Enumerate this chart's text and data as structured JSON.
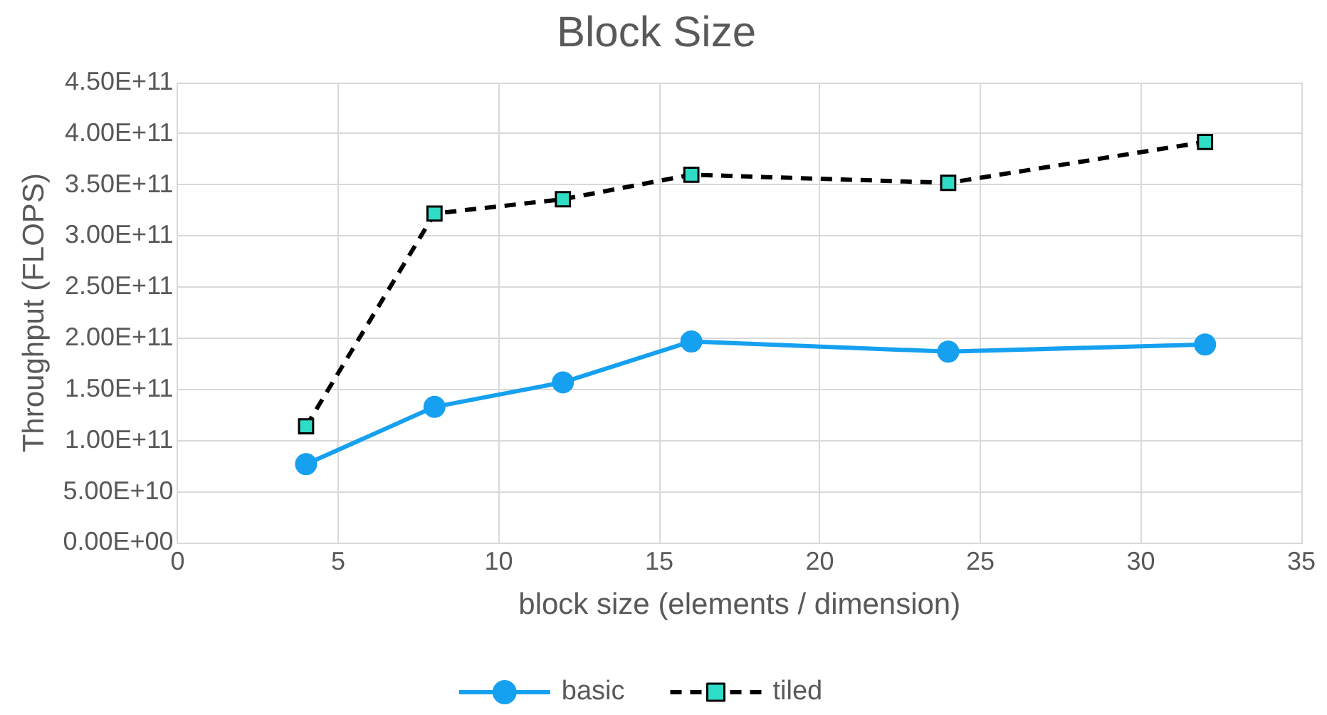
{
  "chart_data": {
    "type": "line",
    "title": "Block Size",
    "xlabel": "block size (elements / dimension)",
    "ylabel": "Throughput (FLOPS)",
    "xlim": [
      0,
      35
    ],
    "xticks": [
      0,
      5,
      10,
      15,
      20,
      25,
      30,
      35
    ],
    "ylim": [
      0,
      450000000000
    ],
    "yticks": [
      {
        "value": 0,
        "label": "0.00E+00"
      },
      {
        "value": 50000000000,
        "label": "5.00E+10"
      },
      {
        "value": 100000000000,
        "label": "1.00E+11"
      },
      {
        "value": 150000000000,
        "label": "1.50E+11"
      },
      {
        "value": 200000000000,
        "label": "2.00E+11"
      },
      {
        "value": 250000000000,
        "label": "2.50E+11"
      },
      {
        "value": 300000000000,
        "label": "3.00E+11"
      },
      {
        "value": 350000000000,
        "label": "3.50E+11"
      },
      {
        "value": 400000000000,
        "label": "4.00E+11"
      },
      {
        "value": 450000000000,
        "label": "4.50E+11"
      }
    ],
    "x": [
      4,
      8,
      12,
      16,
      24,
      32
    ],
    "grid": true,
    "legend": "bottom",
    "series": [
      {
        "name": "basic",
        "color": "#16a0f0",
        "marker": "circle",
        "line_style": "solid",
        "values": [
          77000000000,
          133000000000,
          157000000000,
          197000000000,
          187000000000,
          194000000000
        ]
      },
      {
        "name": "tiled",
        "color": "#000000",
        "colors": [
          "#2fdcc6",
          "#2fdcc6",
          "#2fdcc6",
          "#2fdcc6",
          "#2fdcc6",
          "#2fdcc6"
        ],
        "marker": "square",
        "line_style": "dashed",
        "values": [
          114000000000,
          322000000000,
          336000000000,
          360000000000,
          352000000000,
          392000000000
        ]
      }
    ]
  }
}
